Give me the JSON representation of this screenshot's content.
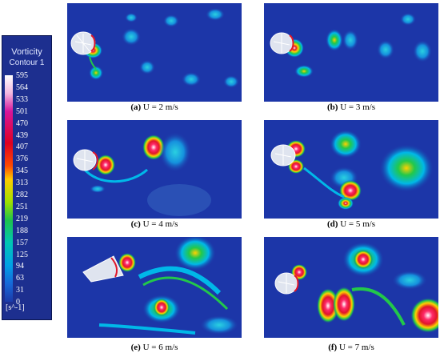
{
  "legend": {
    "title": "Vorticity",
    "subtitle": "Contour 1",
    "ticks": [
      "595",
      "564",
      "533",
      "501",
      "470",
      "439",
      "407",
      "376",
      "345",
      "313",
      "282",
      "251",
      "219",
      "188",
      "157",
      "125",
      "94",
      "63",
      "31",
      "0"
    ],
    "unit": "[s^-1]"
  },
  "panels": [
    {
      "letter": "(a)",
      "text": "U = 2 m/s"
    },
    {
      "letter": "(b)",
      "text": "U = 3 m/s"
    },
    {
      "letter": "(c)",
      "text": "U = 4 m/s"
    },
    {
      "letter": "(d)",
      "text": "U = 5 m/s"
    },
    {
      "letter": "(e)",
      "text": "U = 6 m/s"
    },
    {
      "letter": "(f)",
      "text": "U = 7 m/s"
    }
  ],
  "colors": {
    "background": "#1c36a8",
    "low": "#00b8e8",
    "mid": "#22c84a",
    "high": "#ffd000",
    "peak": "#e0162a",
    "max": "#ffffff"
  }
}
